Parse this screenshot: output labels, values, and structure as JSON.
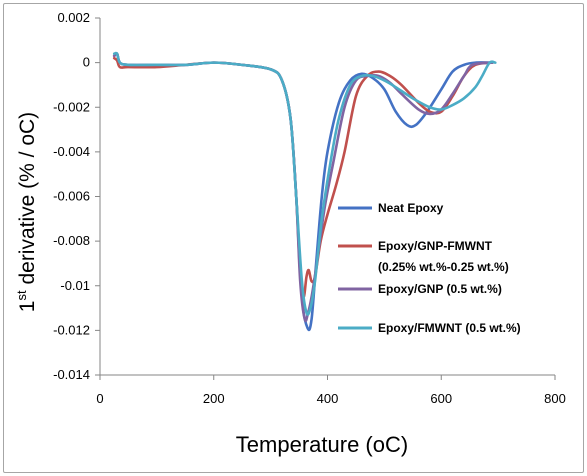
{
  "chart_data": {
    "type": "line",
    "xlabel": "Temperature (oC)",
    "ylabel": {
      "prefix": "1",
      "superscript": "st",
      "rest": " derivative (% / oC)"
    },
    "xlim": [
      0,
      800
    ],
    "ylim": [
      -0.014,
      0.002
    ],
    "x_ticks": [
      "0",
      "200",
      "400",
      "600",
      "800"
    ],
    "y_ticks": [
      "0.002",
      "0",
      "-0.002",
      "-0.004",
      "-0.006",
      "-0.008",
      "-0.01",
      "-0.012",
      "-0.014"
    ],
    "grid": false,
    "legend_position": "right",
    "series": [
      {
        "name": "Neat Epoxy",
        "color": "#4472c4",
        "points": [
          [
            25,
            0.0003
          ],
          [
            30,
            0.0004
          ],
          [
            35,
            0.0
          ],
          [
            50,
            -0.0001
          ],
          [
            100,
            -0.0001
          ],
          [
            150,
            -0.0001
          ],
          [
            200,
            0.0
          ],
          [
            250,
            -0.0001
          ],
          [
            300,
            -0.0003
          ],
          [
            320,
            -0.0008
          ],
          [
            335,
            -0.0025
          ],
          [
            345,
            -0.006
          ],
          [
            355,
            -0.0105
          ],
          [
            365,
            -0.0119
          ],
          [
            372,
            -0.0115
          ],
          [
            380,
            -0.009
          ],
          [
            390,
            -0.006
          ],
          [
            400,
            -0.004
          ],
          [
            420,
            -0.0018
          ],
          [
            440,
            -0.0008
          ],
          [
            460,
            -0.0005
          ],
          [
            480,
            -0.0007
          ],
          [
            500,
            -0.0012
          ],
          [
            520,
            -0.0022
          ],
          [
            540,
            -0.0028
          ],
          [
            555,
            -0.0028
          ],
          [
            575,
            -0.0022
          ],
          [
            600,
            -0.0012
          ],
          [
            620,
            -0.0004
          ],
          [
            640,
            -0.0001
          ],
          [
            660,
            0.0
          ],
          [
            690,
            0.0
          ]
        ]
      },
      {
        "name": "Epoxy/GNP-FMWNT (0.25% wt.%-0.25 wt.%)",
        "color": "#c0504d",
        "points": [
          [
            25,
            0.0002
          ],
          [
            30,
            0.0001
          ],
          [
            35,
            -0.0002
          ],
          [
            50,
            -0.0002
          ],
          [
            100,
            -0.0002
          ],
          [
            150,
            -0.0001
          ],
          [
            200,
            0.0
          ],
          [
            250,
            -0.0001
          ],
          [
            300,
            -0.0003
          ],
          [
            320,
            -0.0008
          ],
          [
            335,
            -0.0025
          ],
          [
            345,
            -0.006
          ],
          [
            352,
            -0.0095
          ],
          [
            358,
            -0.0105
          ],
          [
            363,
            -0.0096
          ],
          [
            367,
            -0.0093
          ],
          [
            372,
            -0.0098
          ],
          [
            378,
            -0.0096
          ],
          [
            388,
            -0.008
          ],
          [
            400,
            -0.0068
          ],
          [
            415,
            -0.0055
          ],
          [
            430,
            -0.004
          ],
          [
            450,
            -0.0015
          ],
          [
            470,
            -0.0006
          ],
          [
            490,
            -0.0004
          ],
          [
            510,
            -0.0006
          ],
          [
            530,
            -0.001
          ],
          [
            560,
            -0.0018
          ],
          [
            580,
            -0.0022
          ],
          [
            600,
            -0.0022
          ],
          [
            620,
            -0.0015
          ],
          [
            640,
            -0.0006
          ],
          [
            660,
            -0.0001
          ],
          [
            690,
            0.0
          ]
        ]
      },
      {
        "name": "Epoxy/GNP (0.5 wt.%)",
        "color": "#8064a2",
        "points": [
          [
            25,
            0.0003
          ],
          [
            30,
            0.0004
          ],
          [
            35,
            0.0
          ],
          [
            50,
            -0.0001
          ],
          [
            100,
            -0.0001
          ],
          [
            150,
            -0.0001
          ],
          [
            200,
            0.0
          ],
          [
            250,
            -0.0001
          ],
          [
            300,
            -0.0003
          ],
          [
            320,
            -0.0008
          ],
          [
            335,
            -0.0025
          ],
          [
            345,
            -0.006
          ],
          [
            352,
            -0.0098
          ],
          [
            360,
            -0.0115
          ],
          [
            366,
            -0.0112
          ],
          [
            372,
            -0.0105
          ],
          [
            380,
            -0.0092
          ],
          [
            395,
            -0.0065
          ],
          [
            410,
            -0.0045
          ],
          [
            430,
            -0.002
          ],
          [
            450,
            -0.0008
          ],
          [
            470,
            -0.0006
          ],
          [
            490,
            -0.0006
          ],
          [
            510,
            -0.0009
          ],
          [
            530,
            -0.0014
          ],
          [
            560,
            -0.0021
          ],
          [
            580,
            -0.0023
          ],
          [
            600,
            -0.0021
          ],
          [
            620,
            -0.0014
          ],
          [
            640,
            -0.0006
          ],
          [
            655,
            -0.0001
          ],
          [
            690,
            0.0
          ]
        ]
      },
      {
        "name": "Epoxy/FMWNT (0.5 wt.%)",
        "color": "#4bacc6",
        "points": [
          [
            25,
            0.0004
          ],
          [
            30,
            0.0004
          ],
          [
            35,
            0.0
          ],
          [
            50,
            -0.0001
          ],
          [
            100,
            -0.0001
          ],
          [
            150,
            -0.0001
          ],
          [
            200,
            0.0
          ],
          [
            250,
            -0.0001
          ],
          [
            300,
            -0.0003
          ],
          [
            320,
            -0.0008
          ],
          [
            335,
            -0.0025
          ],
          [
            345,
            -0.006
          ],
          [
            355,
            -0.0098
          ],
          [
            363,
            -0.0112
          ],
          [
            370,
            -0.011
          ],
          [
            378,
            -0.0098
          ],
          [
            390,
            -0.007
          ],
          [
            405,
            -0.0045
          ],
          [
            420,
            -0.0025
          ],
          [
            440,
            -0.001
          ],
          [
            460,
            -0.0006
          ],
          [
            480,
            -0.0006
          ],
          [
            500,
            -0.0008
          ],
          [
            520,
            -0.0011
          ],
          [
            550,
            -0.0016
          ],
          [
            580,
            -0.002
          ],
          [
            600,
            -0.0021
          ],
          [
            620,
            -0.0019
          ],
          [
            640,
            -0.0016
          ],
          [
            660,
            -0.0011
          ],
          [
            672,
            -0.0006
          ],
          [
            685,
            0.0
          ],
          [
            695,
            0.0
          ]
        ]
      }
    ],
    "legend": [
      {
        "lines": [
          "Neat Epoxy"
        ],
        "color": "#4472c4"
      },
      {
        "lines": [
          "Epoxy/GNP-FMWNT",
          "(0.25% wt.%-0.25 wt.%)"
        ],
        "color": "#c0504d"
      },
      {
        "lines": [
          "Epoxy/GNP (0.5 wt.%)"
        ],
        "color": "#8064a2"
      },
      {
        "lines": [
          "Epoxy/FMWNT (0.5 wt.%)"
        ],
        "color": "#4bacc6"
      }
    ]
  }
}
